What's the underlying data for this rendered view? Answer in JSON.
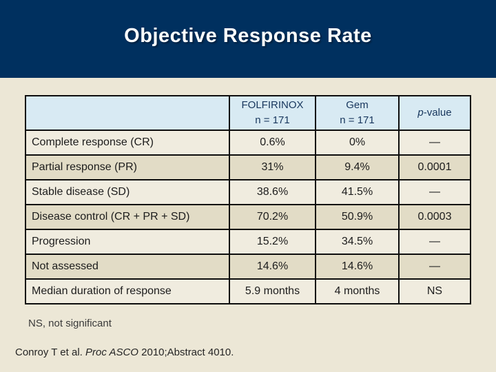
{
  "slide": {
    "title": "Objective Response Rate",
    "footnote": "NS, not significant",
    "citation": {
      "prefix": "Conroy T et al. ",
      "italic_part": "Proc ASCO",
      "suffix": " 2010;Abstract 4010."
    }
  },
  "table": {
    "header": {
      "corner_label": "",
      "col2_line1": "FOLFIRINOX",
      "col2_line2": "n = 171",
      "col3_line1": "Gem",
      "col3_line2": "n = 171",
      "col4_italic": "p",
      "col4_rest": "-value"
    },
    "rows": [
      {
        "label": "Complete response (CR)",
        "folfirinox": "0.6%",
        "gem": "0%",
        "p": "—"
      },
      {
        "label": "Partial response (PR)",
        "folfirinox": "31%",
        "gem": "9.4%",
        "p": "0.0001"
      },
      {
        "label": "Stable disease (SD)",
        "folfirinox": "38.6%",
        "gem": "41.5%",
        "p": "—"
      },
      {
        "label": "Disease control (CR + PR + SD)",
        "folfirinox": "70.2%",
        "gem": "50.9%",
        "p": "0.0003"
      },
      {
        "label": "Progression",
        "folfirinox": "15.2%",
        "gem": "34.5%",
        "p": "—"
      },
      {
        "label": "Not assessed",
        "folfirinox": "14.6%",
        "gem": "14.6%",
        "p": "—"
      },
      {
        "label": "Median duration of response",
        "folfirinox": "5.9 months",
        "gem": "4 months",
        "p": "NS"
      }
    ]
  },
  "colors": {
    "banner_navy": "#00305f",
    "slide_beige": "#ece7d6",
    "header_cell_blue": "#d8eaf3",
    "header_text_navy": "#17365d",
    "row_light": "#f0ecdf",
    "row_dark": "#e2dcc6",
    "table_border": "#0d0d0d",
    "title_text": "#ffffff"
  }
}
